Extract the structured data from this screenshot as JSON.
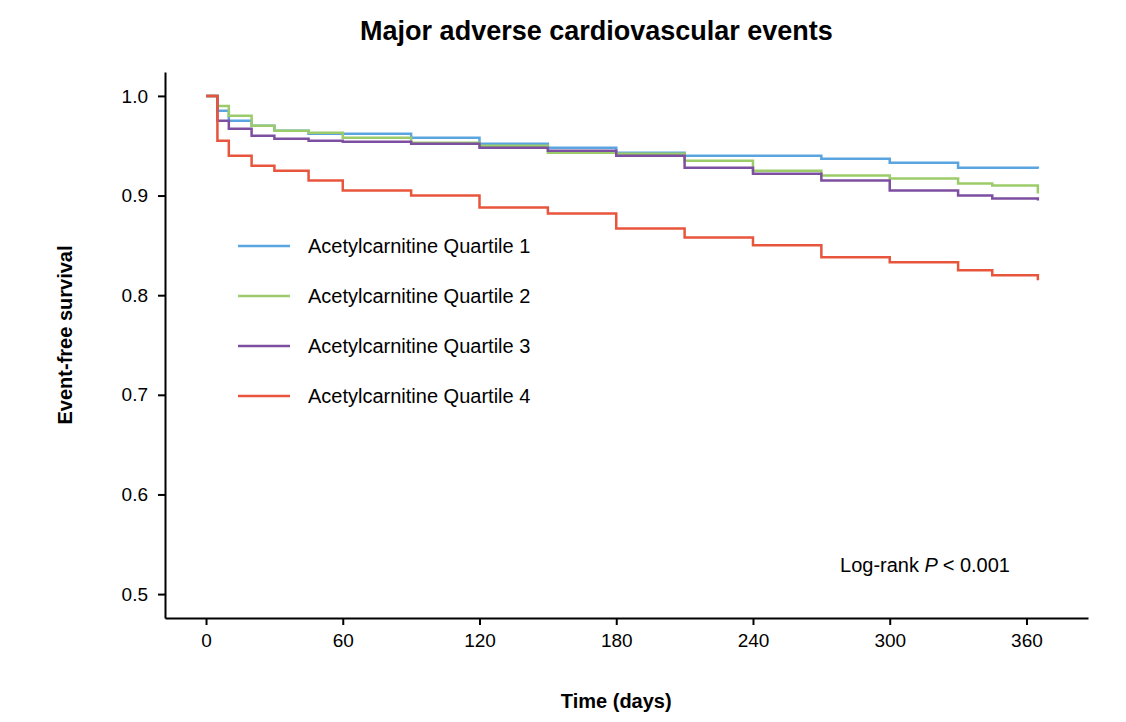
{
  "chart_data": {
    "type": "line",
    "title": "Major adverse cardiovascular events",
    "x_label": "Time (days)",
    "y_label": "Event-free survival",
    "annotation": "Log-rank P < 0.001",
    "line_style": "step",
    "legend": "center left",
    "x": [
      0,
      5,
      10,
      20,
      30,
      45,
      60,
      90,
      120,
      150,
      180,
      210,
      240,
      270,
      300,
      330,
      345,
      365
    ],
    "series": [
      {
        "name": "Acetylcarnitine Quartile 1",
        "color": "#5aa5e0",
        "values": [
          1.0,
          0.985,
          0.975,
          0.97,
          0.965,
          0.962,
          0.962,
          0.958,
          0.952,
          0.948,
          0.943,
          0.94,
          0.94,
          0.937,
          0.933,
          0.928,
          0.928,
          0.927
        ]
      },
      {
        "name": "Acetylcarnitine Quartile 2",
        "color": "#9ccb6a",
        "values": [
          1.0,
          0.99,
          0.98,
          0.97,
          0.965,
          0.963,
          0.958,
          0.953,
          0.95,
          0.943,
          0.942,
          0.935,
          0.925,
          0.92,
          0.917,
          0.912,
          0.91,
          0.902
        ]
      },
      {
        "name": "Acetylcarnitine Quartile 3",
        "color": "#7d4fa0",
        "values": [
          1.0,
          0.975,
          0.967,
          0.96,
          0.957,
          0.955,
          0.954,
          0.952,
          0.948,
          0.945,
          0.94,
          0.928,
          0.922,
          0.915,
          0.905,
          0.9,
          0.897,
          0.895
        ]
      },
      {
        "name": "Acetylcarnitine Quartile 4",
        "color": "#e8553d",
        "values": [
          1.0,
          0.955,
          0.94,
          0.93,
          0.925,
          0.915,
          0.905,
          0.9,
          0.888,
          0.882,
          0.867,
          0.858,
          0.85,
          0.838,
          0.833,
          0.825,
          0.82,
          0.815
        ]
      }
    ],
    "xlim": [
      -18,
      387
    ],
    "ylim": [
      0.476,
      1.024
    ],
    "xticks": [
      0,
      60,
      120,
      180,
      240,
      300,
      360
    ],
    "yticks": [
      0.5,
      0.6,
      0.7,
      0.8,
      0.9,
      {
        "value": 1,
        "label": "1.0"
      }
    ],
    "grid": false
  }
}
